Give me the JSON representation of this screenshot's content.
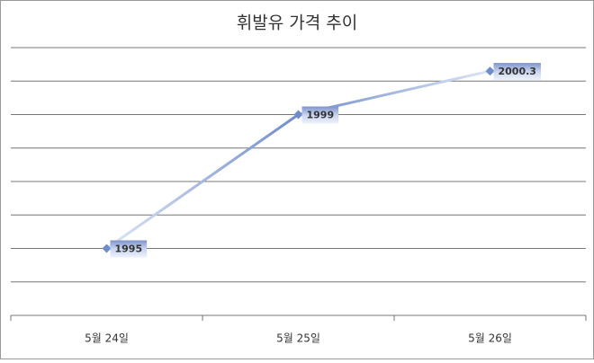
{
  "chart_data": {
    "type": "line",
    "title": "휘발유 가격 추이",
    "categories": [
      "5월 24일",
      "5월 25일",
      "5월 26일"
    ],
    "values": [
      1995,
      1999,
      2000.3
    ],
    "color": "#6f8ccb",
    "ylim": [
      1993,
      2001
    ],
    "yticks": [
      1993,
      1994,
      1995,
      1996,
      1997,
      1998,
      1999,
      2000,
      2001
    ],
    "grid": true
  }
}
